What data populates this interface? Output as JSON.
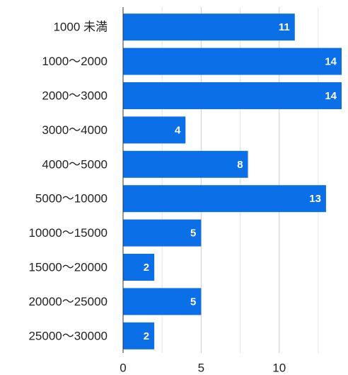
{
  "chart_data": {
    "type": "bar",
    "orientation": "horizontal",
    "categories": [
      "1000 未満",
      "1000〜2000",
      "2000〜3000",
      "3000〜4000",
      "4000〜5000",
      "5000〜10000",
      "10000〜15000",
      "15000〜20000",
      "20000〜25000",
      "25000〜30000"
    ],
    "values": [
      11,
      14,
      14,
      4,
      8,
      13,
      5,
      2,
      5,
      2
    ],
    "color": "#0b6fe8",
    "xlim": [
      0,
      14
    ],
    "xticks": [
      0,
      5,
      10
    ],
    "minor_xticks": [
      2.5,
      7.5,
      12.5
    ],
    "grid": true
  }
}
